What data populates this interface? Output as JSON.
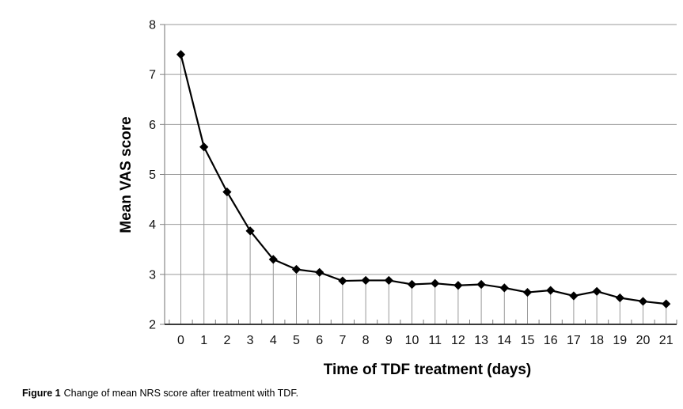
{
  "figure": {
    "caption_label": "Figure 1",
    "caption_text": "Change of mean NRS score after treatment with TDF."
  },
  "chart_data": {
    "type": "line",
    "title": "",
    "xlabel": "Time of TDF treatment (days)",
    "ylabel": "Mean VAS score",
    "x": [
      0,
      1,
      2,
      3,
      4,
      5,
      6,
      7,
      8,
      9,
      10,
      11,
      12,
      13,
      14,
      15,
      16,
      17,
      18,
      19,
      20,
      21
    ],
    "series": [
      {
        "name": "Mean VAS score",
        "values": [
          7.4,
          5.55,
          4.65,
          3.87,
          3.3,
          3.1,
          3.04,
          2.87,
          2.88,
          2.88,
          2.8,
          2.82,
          2.78,
          2.8,
          2.73,
          2.64,
          2.68,
          2.57,
          2.66,
          2.53,
          2.46,
          2.41
        ]
      }
    ],
    "ylim": [
      2,
      8
    ],
    "yticks": [
      2,
      3,
      4,
      5,
      6,
      7,
      8
    ],
    "xtick_labels": [
      "0",
      "1",
      "2",
      "3",
      "4",
      "5",
      "6",
      "7",
      "8",
      "9",
      "10",
      "11",
      "12",
      "13",
      "14",
      "15",
      "16",
      "17",
      "18",
      "19",
      "20",
      "21"
    ],
    "grid": "horizontal-gridlines-plus-drop-lines",
    "legend": "none",
    "marker": "diamond",
    "colors": {
      "line": "#000000",
      "marker": "#000000",
      "grid": "#9a9a9a",
      "drop_line": "#9a9a9a",
      "y_axis_line": "#8a8a8a",
      "x_axis_line": "#3a3a3a",
      "tick": "#7f7f7f",
      "text": "#111111"
    }
  }
}
